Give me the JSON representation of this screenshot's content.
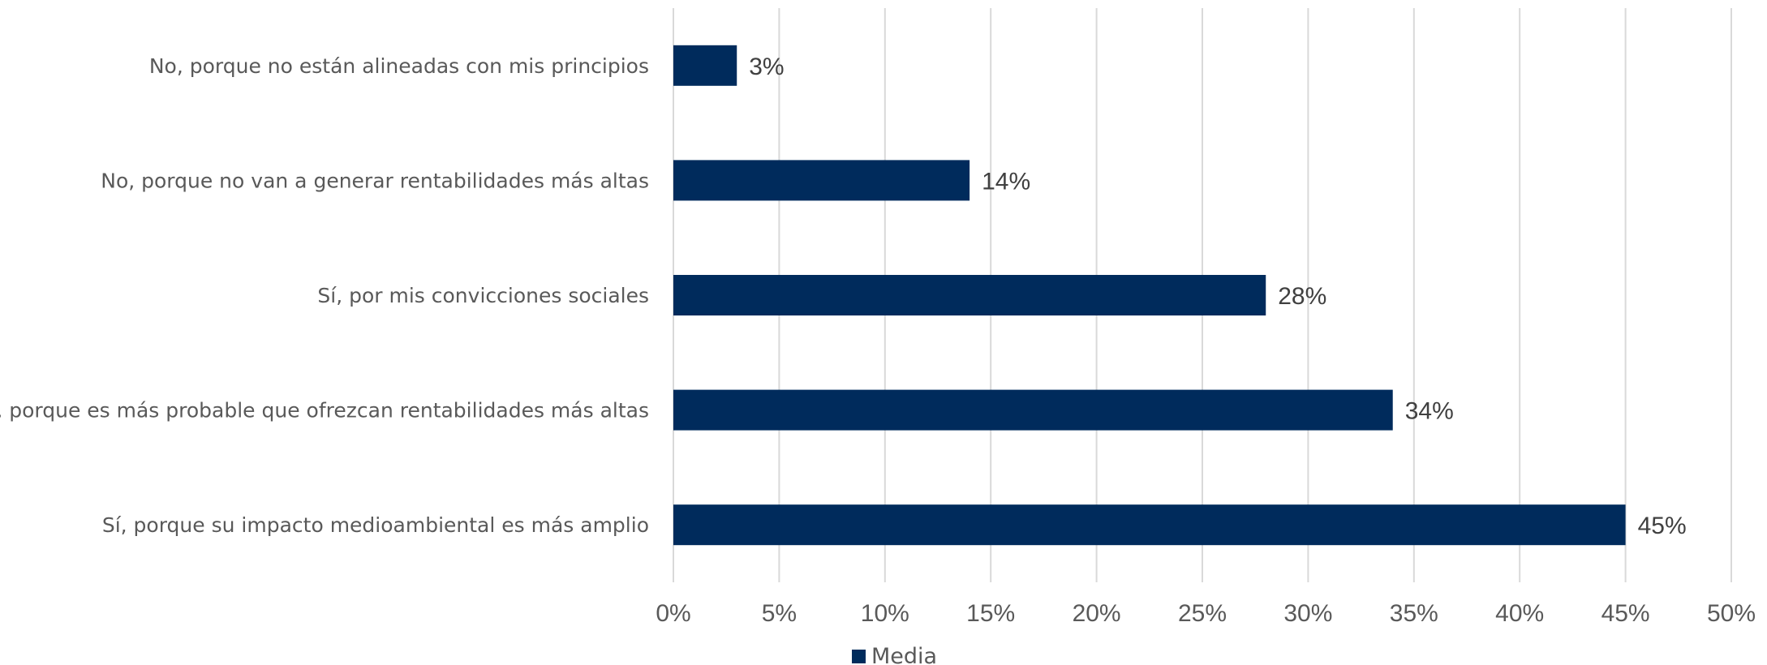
{
  "chart_data": {
    "type": "bar",
    "orientation": "horizontal",
    "categories": [
      "No, porque no están alineadas con mis principios",
      "No, porque no van a generar rentabilidades más altas",
      "Sí, por mis convicciones sociales",
      "Sí, porque es más probable que ofrezcan rentabilidades más altas",
      "Sí, porque su impacto medioambiental es más amplio"
    ],
    "series": [
      {
        "name": "Media",
        "values": [
          3,
          14,
          28,
          34,
          45
        ],
        "color": "#002b5c"
      }
    ],
    "data_labels": [
      "3%",
      "14%",
      "28%",
      "34%",
      "45%"
    ],
    "xlim": [
      0,
      50
    ],
    "x_ticks": [
      0,
      5,
      10,
      15,
      20,
      25,
      30,
      35,
      40,
      45,
      50
    ],
    "x_tick_labels": [
      "0%",
      "5%",
      "10%",
      "15%",
      "20%",
      "25%",
      "30%",
      "35%",
      "40%",
      "45%",
      "50%"
    ],
    "title": "",
    "xlabel": "",
    "ylabel": "",
    "grid": "vertical",
    "legend": "bottom"
  },
  "legend": {
    "label": "Media"
  }
}
